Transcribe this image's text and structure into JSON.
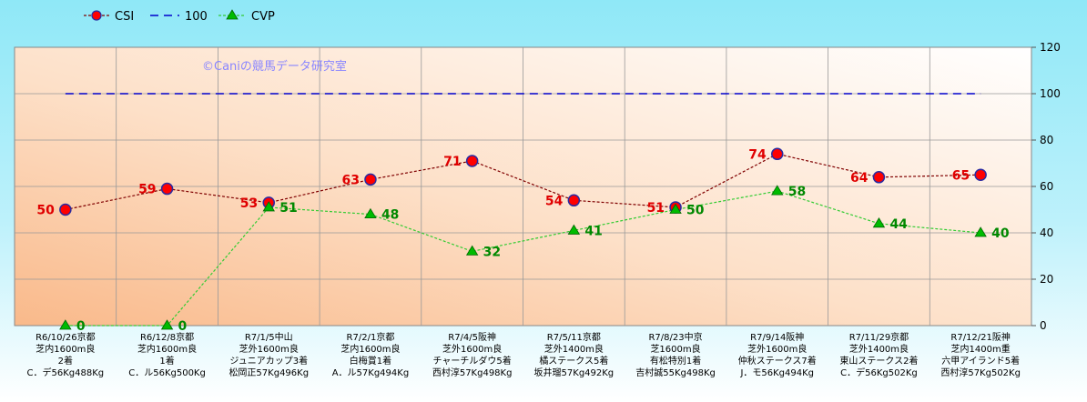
{
  "chart_data": {
    "type": "line",
    "watermark": "©Caniの競馬データ研究室",
    "yticks": [
      0,
      20,
      40,
      60,
      80,
      100,
      120
    ],
    "ylim": [
      0,
      120
    ],
    "legend_position": "top-left",
    "grid": true,
    "categories": [
      [
        "R6/10/26京都",
        "芝内1600m良",
        "2着",
        "C．デ56Kg488Kg"
      ],
      [
        "R6/12/8京都",
        "芝内1600m良",
        "1着",
        "C．ル56Kg500Kg"
      ],
      [
        "R7/1/5中山",
        "芝外1600m良",
        "ジュニアカップ3着",
        "松岡正57Kg496Kg"
      ],
      [
        "R7/2/1京都",
        "芝内1600m良",
        "白梅賞1着",
        "A．ル57Kg494Kg"
      ],
      [
        "R7/4/5阪神",
        "芝外1600m良",
        "チャーチルダウ5着",
        "西村淳57Kg498Kg"
      ],
      [
        "R7/5/11京都",
        "芝外1400m良",
        "橘ステークス5着",
        "坂井瑠57Kg492Kg"
      ],
      [
        "R7/8/23中京",
        "芝1600m良",
        "有松特別1着",
        "吉村誠55Kg498Kg"
      ],
      [
        "R7/9/14阪神",
        "芝外1600m良",
        "仲秋ステークス7着",
        "J．モ56Kg494Kg"
      ],
      [
        "R7/11/29京都",
        "芝外1400m良",
        "東山ステークス2着",
        "C．デ56Kg502Kg"
      ],
      [
        "R7/12/21阪神",
        "芝内1400m重",
        "六甲アイランド5着",
        "西村淳57Kg502Kg"
      ]
    ],
    "series": [
      {
        "name": "CSI",
        "color": "#800000",
        "marker_color": "#ff0000",
        "label_color": "#e00000",
        "values": [
          50,
          59,
          53,
          63,
          71,
          54,
          51,
          74,
          64,
          65
        ]
      },
      {
        "name": "100",
        "color": "#0000cc",
        "values": [
          100,
          100,
          100,
          100,
          100,
          100,
          100,
          100,
          100,
          100
        ]
      },
      {
        "name": "CVP",
        "color": "#33cc33",
        "marker_color": "#00bb00",
        "label_color": "#008800",
        "values": [
          0,
          0,
          51,
          48,
          32,
          41,
          50,
          58,
          44,
          40
        ]
      }
    ]
  }
}
